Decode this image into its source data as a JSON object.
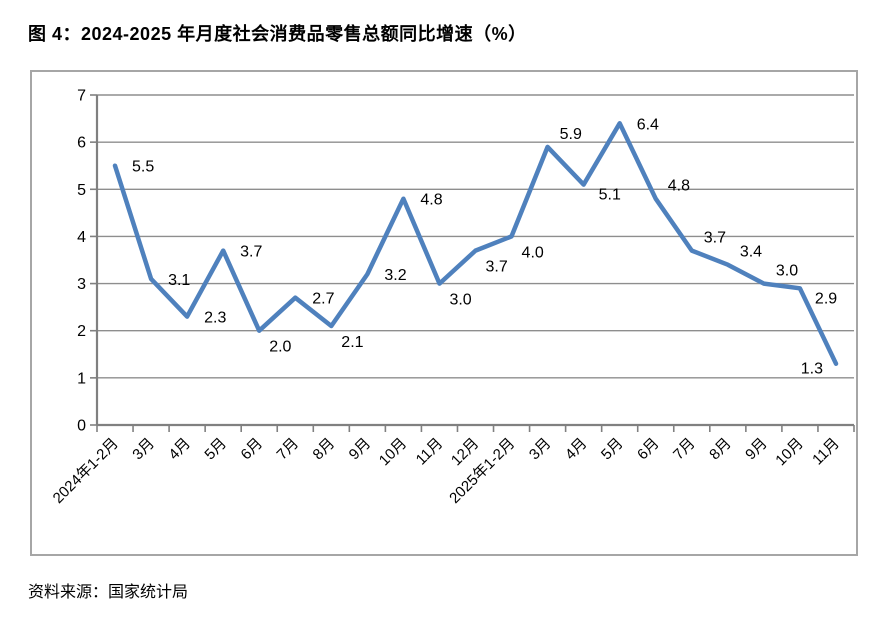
{
  "figure": {
    "title": "图 4：2024-2025 年月度社会消费品零售总额同比增速（%）",
    "source": "资料来源：国家统计局"
  },
  "chart_data": {
    "type": "line",
    "title": "2024-2025 年月度社会消费品零售总额同比增速（%）",
    "categories": [
      "2024年1-2月",
      "3月",
      "4月",
      "5月",
      "6月",
      "7月",
      "8月",
      "9月",
      "10月",
      "11月",
      "12月",
      "2025年1-2月",
      "3月",
      "4月",
      "5月",
      "6月",
      "7月",
      "8月",
      "9月",
      "10月",
      "11月"
    ],
    "values": [
      5.5,
      3.1,
      2.3,
      3.7,
      2.0,
      2.7,
      2.1,
      3.2,
      4.8,
      3.0,
      3.7,
      4.0,
      5.9,
      5.1,
      6.4,
      4.8,
      3.7,
      3.4,
      3.0,
      2.9,
      1.3
    ],
    "ylim": [
      0,
      7
    ],
    "y_ticks": [
      "0",
      "1",
      "2",
      "3",
      "4",
      "5",
      "6",
      "7"
    ],
    "grid": true,
    "legend": "none",
    "xlabel": "",
    "ylabel": "",
    "line_color": "#4F81BD",
    "grid_color": "#8e8e8e",
    "axis_color": "#808080",
    "label_color": "#000000",
    "label_anchor": [
      "r",
      "r",
      "r",
      "r",
      "br",
      "r",
      "br",
      "r",
      "r",
      "br",
      "br",
      "br",
      "ar",
      "rb",
      "r",
      "ar",
      "ar",
      "ar",
      "ar",
      "rb",
      "l"
    ]
  }
}
